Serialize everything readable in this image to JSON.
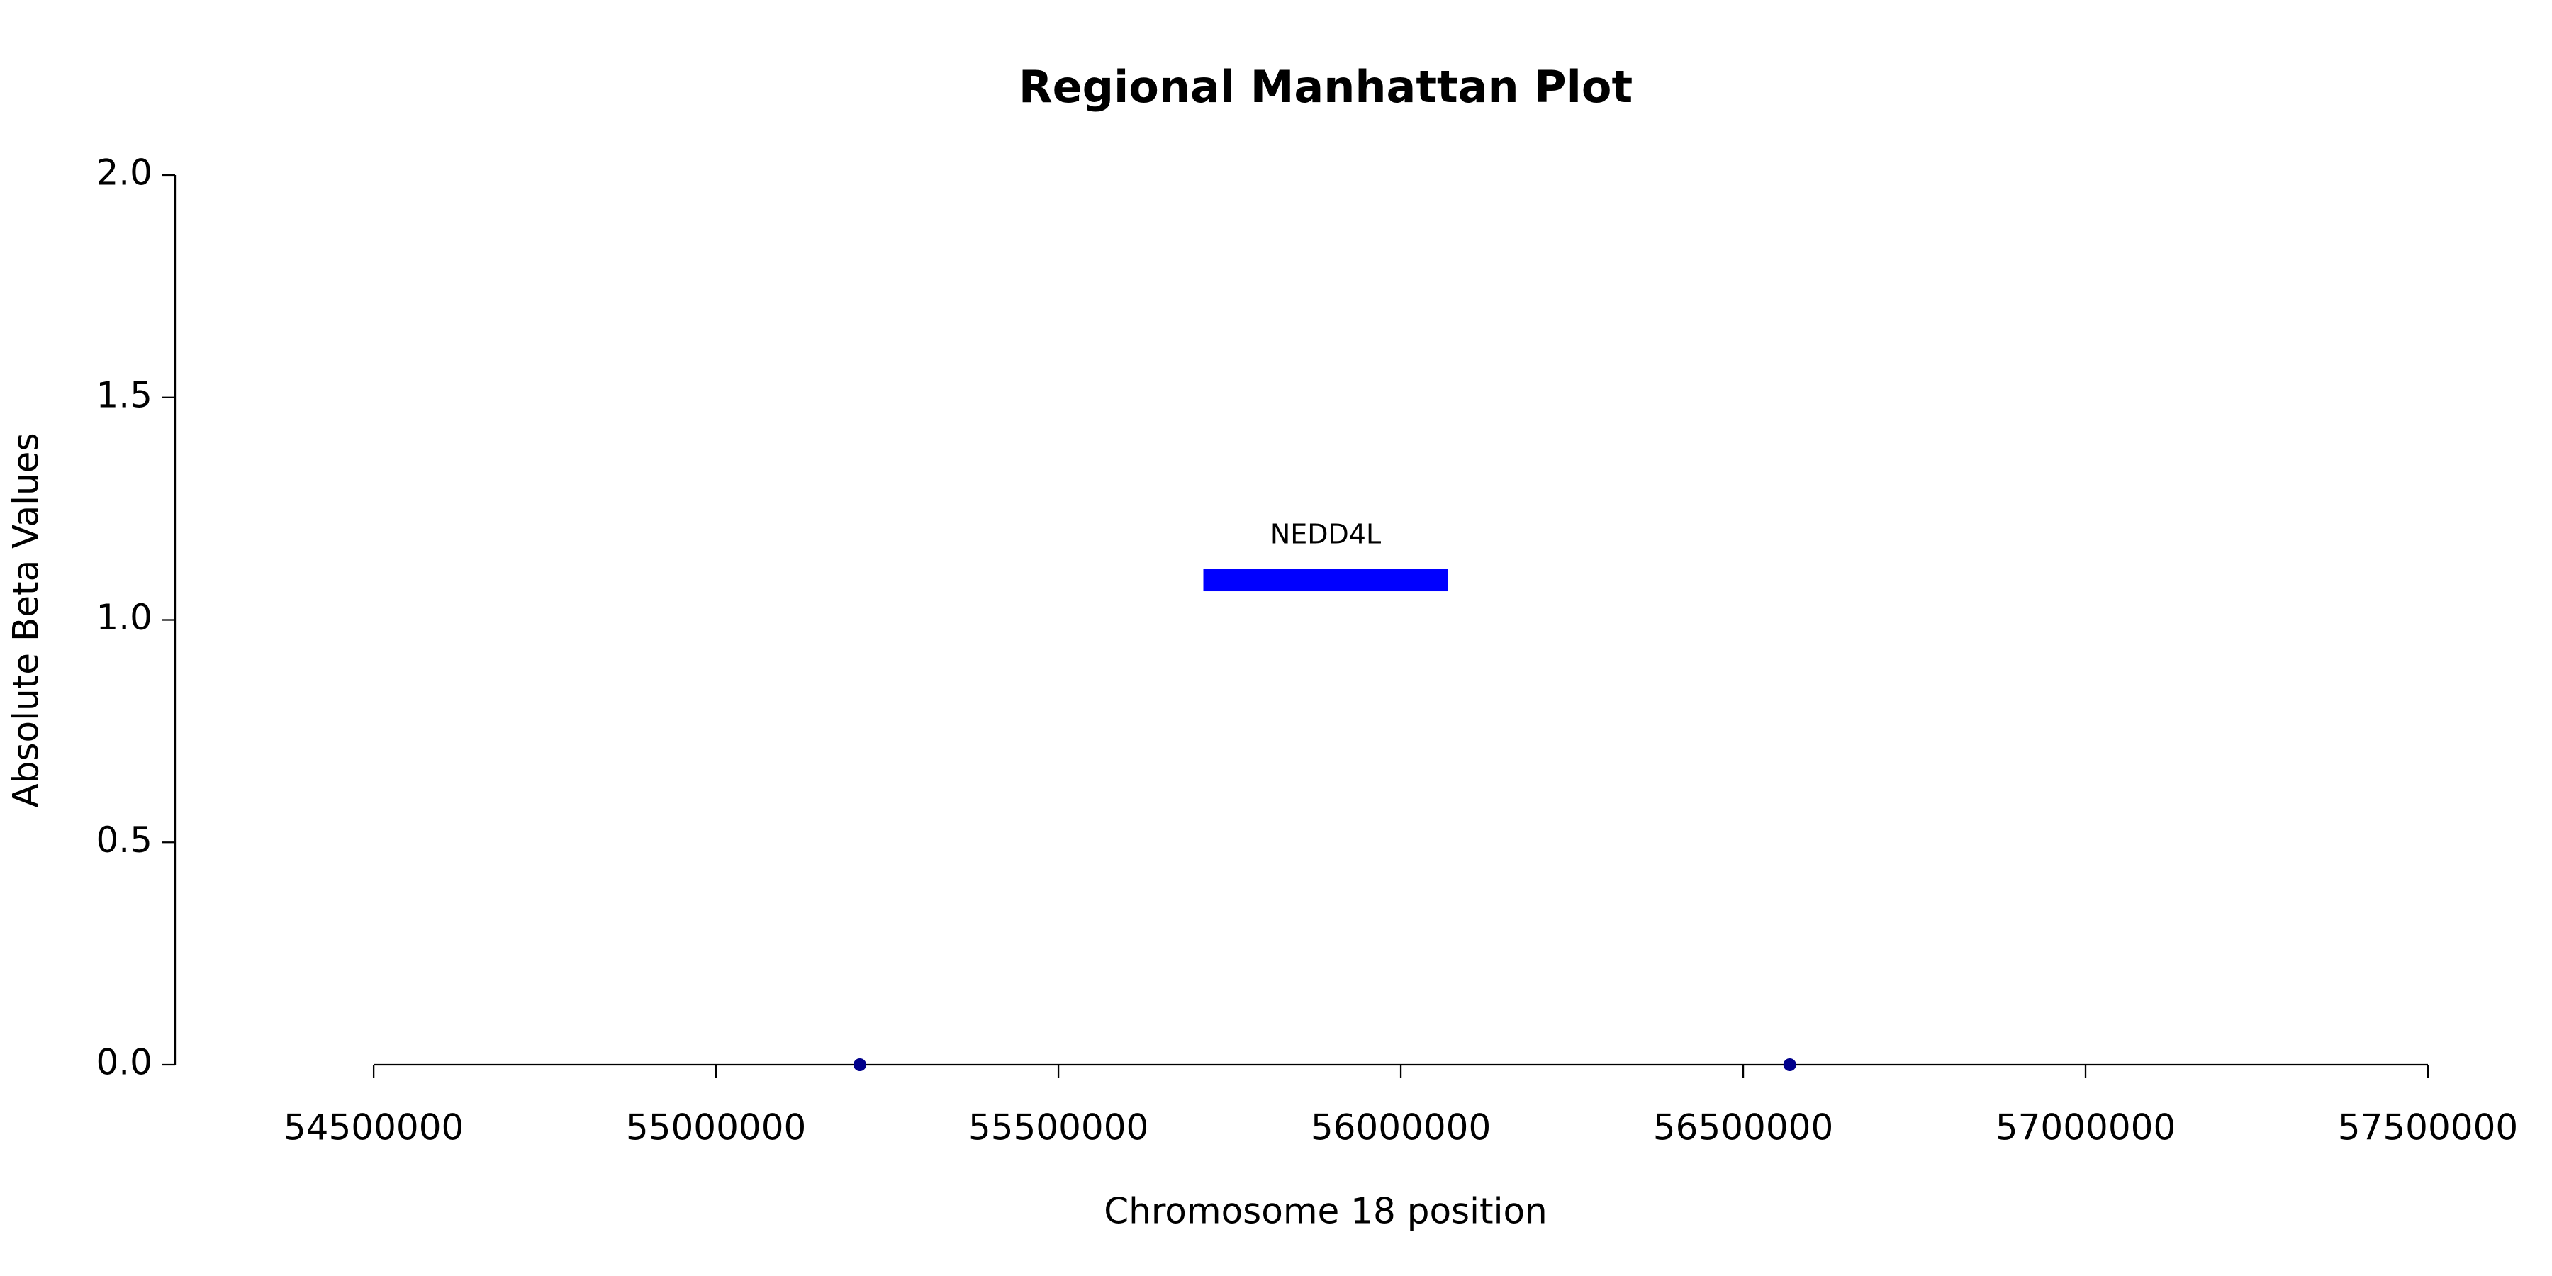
{
  "chart_data": {
    "type": "scatter",
    "title": "Regional Manhattan Plot",
    "x_label": "Chromosome 18 position",
    "y_label": "Absolute Beta Values",
    "x": [
      55210000,
      56568000
    ],
    "values": [
      0,
      0
    ],
    "color": "#00008b",
    "genes": [
      {
        "label": "NEDD4L",
        "start": 55711619,
        "end": 56068772,
        "value": 1.09,
        "color": "#0000ff"
      }
    ],
    "xlim": [
      54210000,
      57500000
    ],
    "xticks": [
      54500000,
      55000000,
      55500000,
      56000000,
      56500000,
      57000000,
      57500000
    ],
    "ylim": [
      0,
      2
    ],
    "yticks": [
      {
        "value": 0,
        "label": "0.0"
      },
      {
        "value": 0.5,
        "label": "0.5"
      },
      {
        "value": 1,
        "label": "1.0"
      },
      {
        "value": 1.5,
        "label": "1.5"
      },
      {
        "value": 2,
        "label": "2.0"
      }
    ]
  }
}
